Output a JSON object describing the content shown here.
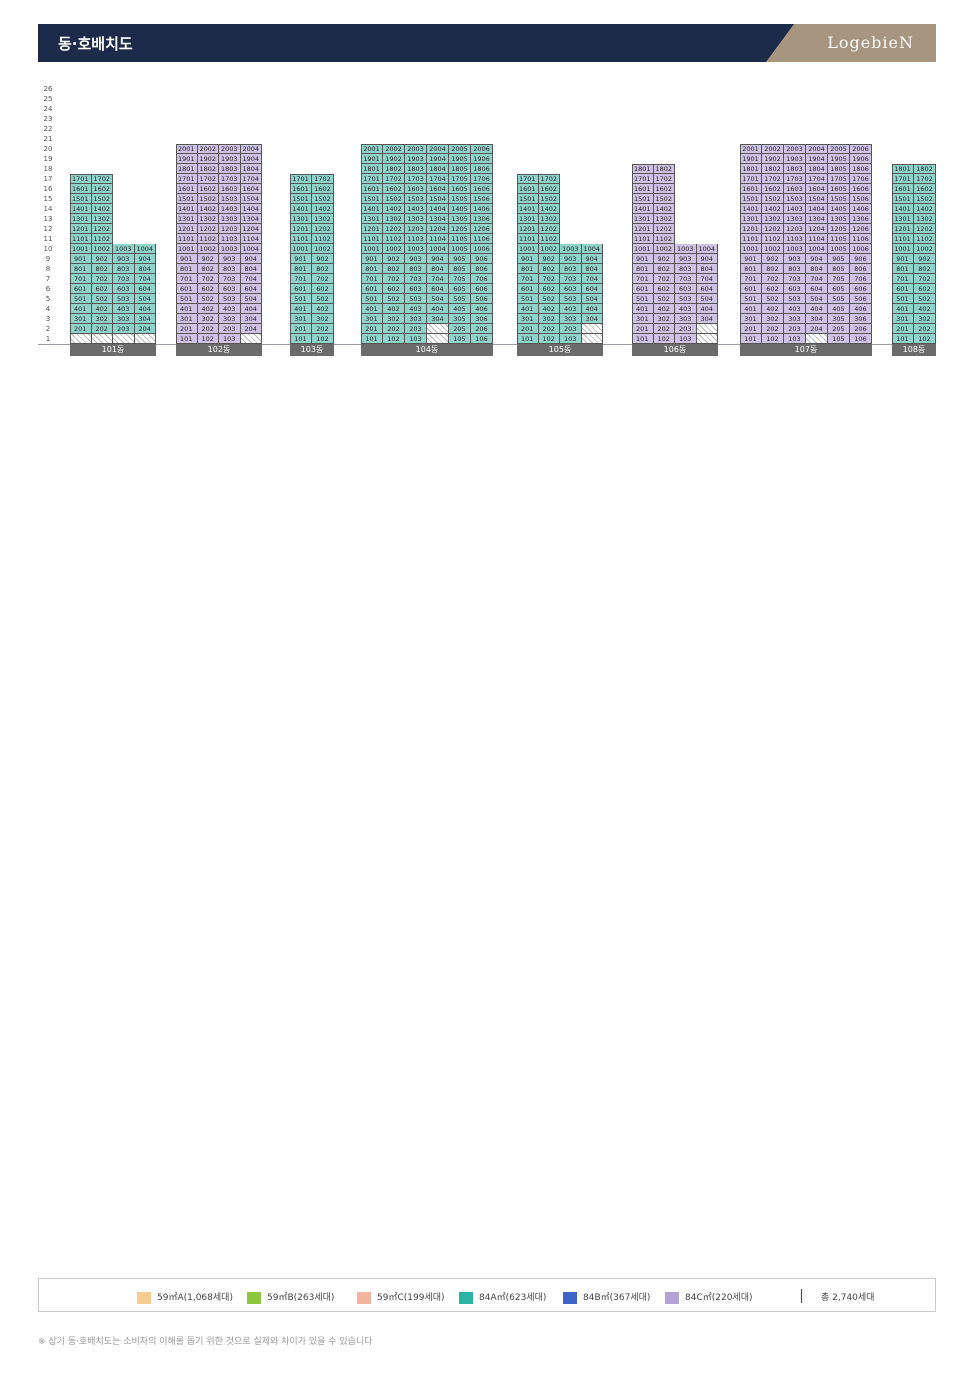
{
  "header": {
    "title": "동·호배치도",
    "brand": "LogebieN"
  },
  "floor_labels": [
    "26",
    "25",
    "24",
    "23",
    "22",
    "21",
    "20",
    "19",
    "18",
    "17",
    "16",
    "15",
    "14",
    "13",
    "12",
    "11",
    "10",
    "9",
    "8",
    "7",
    "6",
    "5",
    "4",
    "3",
    "2",
    "1"
  ],
  "colors": {
    "59A": "#f6cd91",
    "59B": "#b9dd8a",
    "59C": "#f3b59e",
    "84A": "#8fd3cb",
    "84B": "#8ea6dd",
    "84C": "#cfc2e4"
  },
  "buildings": [
    {
      "name": "101동",
      "floors": 17,
      "cols": 4,
      "base_cols": [
        "84A",
        "84A",
        "84A",
        "84A"
      ],
      "tower_cols": 2,
      "tower_from": 11,
      "voids": [
        [
          1,
          1
        ],
        [
          1,
          2
        ],
        [
          1,
          3
        ],
        [
          1,
          4
        ]
      ]
    },
    {
      "name": "102동",
      "floors": 20,
      "cols": 4,
      "base_cols": [
        "84C",
        "84C",
        "84C",
        "84C"
      ],
      "tower_cols": 4,
      "tower_from": 1,
      "voids": [
        [
          1,
          4
        ]
      ]
    },
    {
      "name": "103동",
      "floors": 17,
      "cols": 2,
      "base_cols": [
        "84A",
        "84A"
      ],
      "tower_cols": 2,
      "tower_from": 1,
      "voids": []
    },
    {
      "name": "104동",
      "floors": 20,
      "cols": 6,
      "base_cols": [
        "84A",
        "84A",
        "84A",
        "84A",
        "84A",
        "84A"
      ],
      "tower_cols": 6,
      "tower_from": 1,
      "voids": [
        [
          1,
          4
        ],
        [
          2,
          4
        ]
      ]
    },
    {
      "name": "105동",
      "floors": 17,
      "cols": 4,
      "base_cols": [
        "84A",
        "84A",
        "84A",
        "84A"
      ],
      "tower_cols": 2,
      "tower_from": 11,
      "voids": [
        [
          1,
          4
        ],
        [
          2,
          4
        ]
      ]
    },
    {
      "name": "106동",
      "floors": 18,
      "cols": 4,
      "base_cols": [
        "84C",
        "84C",
        "84C",
        "84C"
      ],
      "tower_cols": 2,
      "tower_from": 11,
      "voids": [
        [
          1,
          4
        ],
        [
          2,
          4
        ]
      ]
    },
    {
      "name": "107동",
      "floors": 20,
      "cols": 6,
      "base_cols": [
        "84C",
        "84C",
        "84C",
        "84C",
        "84C",
        "84C"
      ],
      "tower_cols": 6,
      "tower_from": 1,
      "voids": [
        [
          1,
          4
        ]
      ]
    },
    {
      "name": "108동",
      "floors": 18,
      "cols": 2,
      "base_cols": [
        "84A",
        "84A"
      ],
      "tower_cols": 2,
      "tower_from": 1,
      "voids": []
    }
  ],
  "legend": {
    "items": [
      {
        "label": "59㎡A(1,068세대)",
        "color": "#f6cd91"
      },
      {
        "label": "59㎡B(263세대)",
        "color": "#8dc63f"
      },
      {
        "label": "59㎡C(199세대)",
        "color": "#f3b59e"
      },
      {
        "label": "84A㎡(623세대)",
        "color": "#2ab3a6"
      },
      {
        "label": "84B㎡(367세대)",
        "color": "#3d64c6"
      },
      {
        "label": "84C㎡(220세대)",
        "color": "#b4a4d6"
      }
    ],
    "total": "총 2,740세대"
  },
  "footnote": "※ 상기 동·호배치도는 소비자의 이해를 돕기 위한 것으로 실제와 차이가 있을 수 있습니다"
}
